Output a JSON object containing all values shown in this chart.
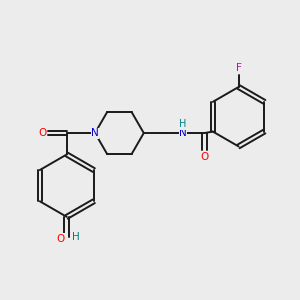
{
  "background_color": "#ececec",
  "bond_color": "#1a1a1a",
  "atom_colors": {
    "O": "#ff0000",
    "N": "#0000cc",
    "F": "#cc00cc",
    "H": "#008080",
    "C": "#1a1a1a"
  },
  "figsize": [
    3.0,
    3.0
  ],
  "dpi": 100,
  "lw": 1.4,
  "fontsize": 7.5
}
